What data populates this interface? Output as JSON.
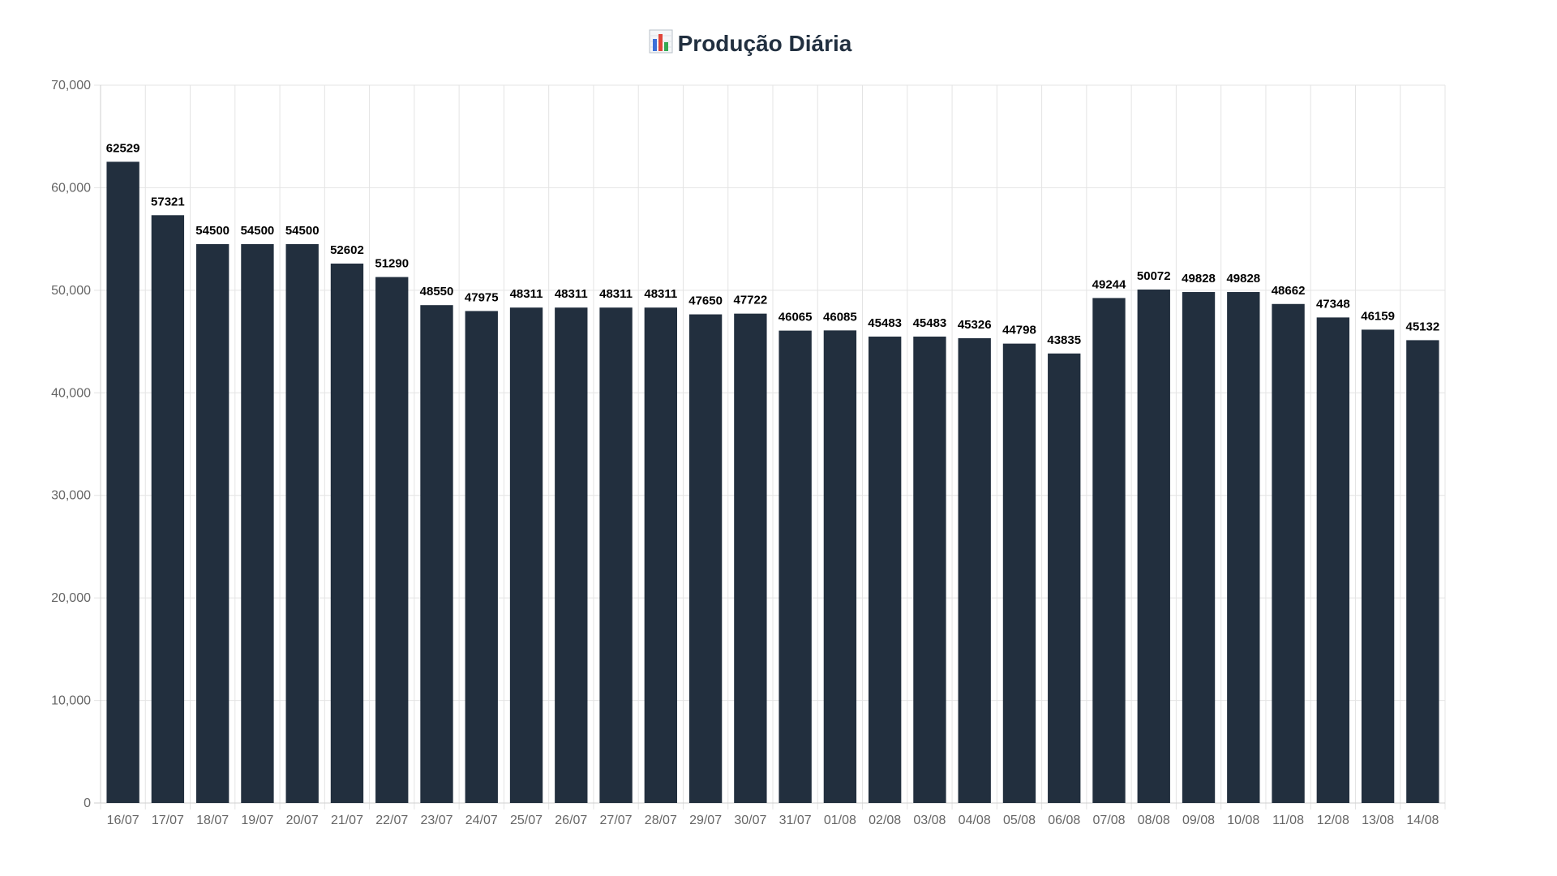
{
  "chart_data": {
    "type": "bar",
    "title": "Produção Diária",
    "title_icon": "bar-chart-icon",
    "xlabel": "",
    "ylabel": "",
    "ylim": [
      0,
      70000
    ],
    "y_ticks": [
      "0",
      "10,000",
      "20,000",
      "30,000",
      "40,000",
      "50,000",
      "60,000",
      "70,000"
    ],
    "y_tick_values": [
      0,
      10000,
      20000,
      30000,
      40000,
      50000,
      60000,
      70000
    ],
    "grid": true,
    "legend": "none",
    "bar_color": "#222f3e",
    "categories": [
      "16/07",
      "17/07",
      "18/07",
      "19/07",
      "20/07",
      "21/07",
      "22/07",
      "23/07",
      "24/07",
      "25/07",
      "26/07",
      "27/07",
      "28/07",
      "29/07",
      "30/07",
      "31/07",
      "01/08",
      "02/08",
      "03/08",
      "04/08",
      "05/08",
      "06/08",
      "07/08",
      "08/08",
      "09/08",
      "10/08",
      "11/08",
      "12/08",
      "13/08",
      "14/08"
    ],
    "values": [
      62529,
      57321,
      54500,
      54500,
      54500,
      52602,
      51290,
      48550,
      47975,
      48311,
      48311,
      48311,
      48311,
      47650,
      47722,
      46065,
      46085,
      45483,
      45483,
      45326,
      44798,
      43835,
      49244,
      50072,
      49828,
      49828,
      48662,
      47348,
      46159,
      45132
    ]
  }
}
